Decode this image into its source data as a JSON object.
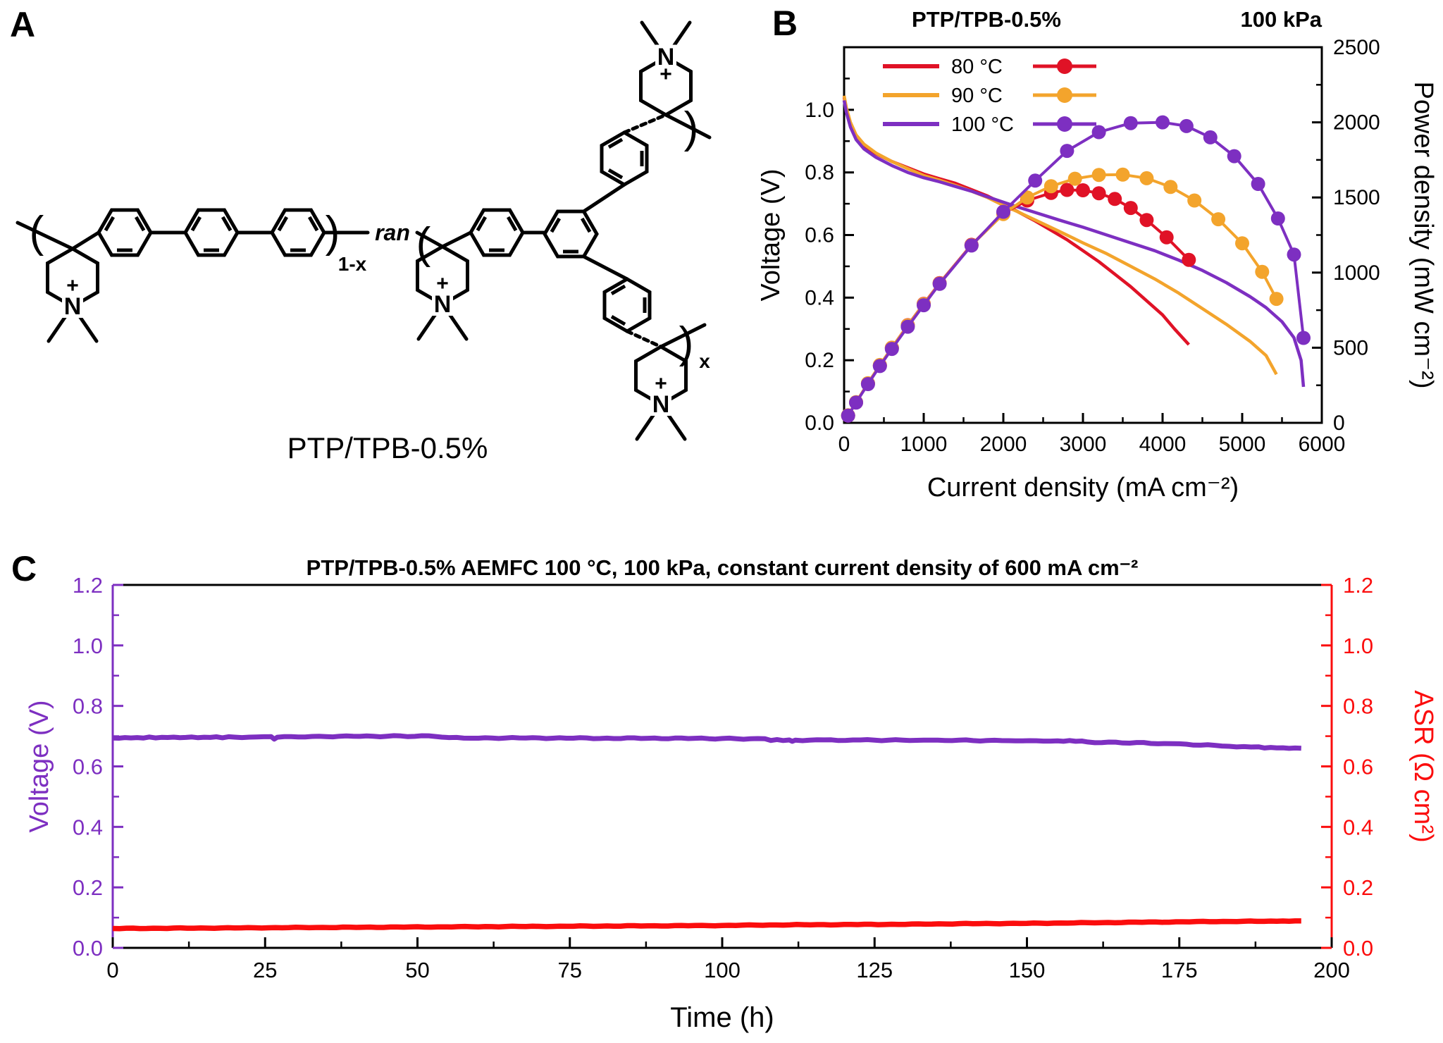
{
  "panel_a": {
    "label": "A",
    "molecule_name": "PTP/TPB-0.5%",
    "atom_n": "N",
    "charge": "+",
    "random_copolymer_label": "ran",
    "subscript_unit1": "1-x",
    "subscript_unit2": "x"
  },
  "panel_b": {
    "label": "B",
    "title": "PTP/TPB-0.5%",
    "condition": "100 kPa",
    "x_axis": {
      "title": "Current density (mA cm⁻²)",
      "min": 0,
      "max": 6000,
      "major_ticks": [
        0,
        1000,
        2000,
        3000,
        4000,
        5000,
        6000
      ],
      "minor_step": 500
    },
    "y_left_axis": {
      "title": "Voltage (V)",
      "min": 0,
      "max": 1.2,
      "major_ticks": [
        0.0,
        0.2,
        0.4,
        0.6,
        0.8,
        1.0
      ],
      "minor_step": 0.1
    },
    "y_right_axis": {
      "title": "Power density (mW cm⁻²)",
      "min": 0,
      "max": 2500,
      "major_ticks": [
        0,
        500,
        1000,
        1500,
        2000,
        2500
      ],
      "minor_step": 250
    },
    "legend": [
      {
        "label": "80 °C",
        "color": "#e01226"
      },
      {
        "label": "90 °C",
        "color": "#f3a42c"
      },
      {
        "label": "100 °C",
        "color": "#7d2fc1"
      }
    ],
    "chart_data": {
      "type": "line",
      "grid": false,
      "legend_position": "top-left-inside",
      "series": [
        {
          "name": "80 °C polarization",
          "axis": "left",
          "style": "solid",
          "color": "#e01226",
          "points": [
            [
              0,
              1.04
            ],
            [
              30,
              1.0
            ],
            [
              80,
              0.955
            ],
            [
              150,
              0.915
            ],
            [
              250,
              0.885
            ],
            [
              400,
              0.86
            ],
            [
              600,
              0.835
            ],
            [
              800,
              0.815
            ],
            [
              1000,
              0.795
            ],
            [
              1200,
              0.78
            ],
            [
              1400,
              0.765
            ],
            [
              1600,
              0.745
            ],
            [
              1800,
              0.725
            ],
            [
              2000,
              0.7
            ],
            [
              2200,
              0.672
            ],
            [
              2400,
              0.645
            ],
            [
              2600,
              0.615
            ],
            [
              2800,
              0.585
            ],
            [
              3000,
              0.55
            ],
            [
              3200,
              0.515
            ],
            [
              3400,
              0.475
            ],
            [
              3600,
              0.435
            ],
            [
              3800,
              0.39
            ],
            [
              4000,
              0.345
            ],
            [
              4150,
              0.3
            ],
            [
              4330,
              0.25
            ]
          ]
        },
        {
          "name": "90 °C polarization",
          "axis": "left",
          "style": "solid",
          "color": "#f3a42c",
          "points": [
            [
              0,
              1.045
            ],
            [
              30,
              1.005
            ],
            [
              80,
              0.96
            ],
            [
              150,
              0.92
            ],
            [
              250,
              0.89
            ],
            [
              400,
              0.862
            ],
            [
              600,
              0.835
            ],
            [
              800,
              0.812
            ],
            [
              1000,
              0.79
            ],
            [
              1200,
              0.775
            ],
            [
              1400,
              0.758
            ],
            [
              1600,
              0.74
            ],
            [
              1800,
              0.72
            ],
            [
              2000,
              0.695
            ],
            [
              2200,
              0.672
            ],
            [
              2400,
              0.648
            ],
            [
              2700,
              0.612
            ],
            [
              3000,
              0.575
            ],
            [
              3300,
              0.54
            ],
            [
              3600,
              0.5
            ],
            [
              3900,
              0.46
            ],
            [
              4200,
              0.415
            ],
            [
              4500,
              0.365
            ],
            [
              4800,
              0.315
            ],
            [
              5100,
              0.26
            ],
            [
              5300,
              0.215
            ],
            [
              5430,
              0.155
            ]
          ]
        },
        {
          "name": "100 °C polarization",
          "axis": "left",
          "style": "solid",
          "color": "#7d2fc1",
          "points": [
            [
              0,
              1.03
            ],
            [
              30,
              0.99
            ],
            [
              80,
              0.945
            ],
            [
              150,
              0.905
            ],
            [
              250,
              0.875
            ],
            [
              400,
              0.848
            ],
            [
              600,
              0.822
            ],
            [
              800,
              0.8
            ],
            [
              1000,
              0.783
            ],
            [
              1200,
              0.77
            ],
            [
              1400,
              0.755
            ],
            [
              1600,
              0.74
            ],
            [
              1800,
              0.722
            ],
            [
              2000,
              0.705
            ],
            [
              2200,
              0.688
            ],
            [
              2400,
              0.672
            ],
            [
              2700,
              0.648
            ],
            [
              3000,
              0.625
            ],
            [
              3300,
              0.6
            ],
            [
              3600,
              0.575
            ],
            [
              3900,
              0.55
            ],
            [
              4200,
              0.52
            ],
            [
              4500,
              0.487
            ],
            [
              4800,
              0.448
            ],
            [
              5100,
              0.403
            ],
            [
              5300,
              0.368
            ],
            [
              5500,
              0.323
            ],
            [
              5650,
              0.272
            ],
            [
              5740,
              0.2
            ],
            [
              5770,
              0.115
            ]
          ]
        },
        {
          "name": "80 °C power density",
          "axis": "right",
          "style": "markers",
          "color": "#e01226",
          "points": [
            [
              50,
              48
            ],
            [
              150,
              136
            ],
            [
              300,
              262
            ],
            [
              450,
              382
            ],
            [
              600,
              500
            ],
            [
              800,
              650
            ],
            [
              1000,
              792
            ],
            [
              1200,
              930
            ],
            [
              1600,
              1185
            ],
            [
              2000,
              1395
            ],
            [
              2300,
              1480
            ],
            [
              2600,
              1530
            ],
            [
              2800,
              1550
            ],
            [
              3000,
              1548
            ],
            [
              3200,
              1528
            ],
            [
              3400,
              1490
            ],
            [
              3600,
              1430
            ],
            [
              3800,
              1350
            ],
            [
              4050,
              1235
            ],
            [
              4330,
              1085
            ]
          ]
        },
        {
          "name": "90 °C power density",
          "axis": "right",
          "style": "markers",
          "color": "#f3a42c",
          "points": [
            [
              50,
              50
            ],
            [
              150,
              138
            ],
            [
              300,
              264
            ],
            [
              450,
              385
            ],
            [
              600,
              500
            ],
            [
              800,
              648
            ],
            [
              1000,
              790
            ],
            [
              1200,
              928
            ],
            [
              1600,
              1182
            ],
            [
              2000,
              1390
            ],
            [
              2300,
              1500
            ],
            [
              2600,
              1575
            ],
            [
              2900,
              1625
            ],
            [
              3200,
              1650
            ],
            [
              3500,
              1652
            ],
            [
              3800,
              1628
            ],
            [
              4100,
              1570
            ],
            [
              4400,
              1480
            ],
            [
              4700,
              1355
            ],
            [
              5000,
              1195
            ],
            [
              5250,
              1005
            ],
            [
              5430,
              825
            ]
          ]
        },
        {
          "name": "100 °C power density",
          "axis": "right",
          "style": "markers",
          "color": "#7d2fc1",
          "points": [
            [
              50,
              48
            ],
            [
              150,
              135
            ],
            [
              300,
              258
            ],
            [
              450,
              378
            ],
            [
              600,
              492
            ],
            [
              800,
              640
            ],
            [
              1000,
              783
            ],
            [
              1200,
              925
            ],
            [
              1600,
              1180
            ],
            [
              2000,
              1405
            ],
            [
              2400,
              1612
            ],
            [
              2800,
              1810
            ],
            [
              3200,
              1935
            ],
            [
              3600,
              1995
            ],
            [
              4000,
              2000
            ],
            [
              4300,
              1975
            ],
            [
              4600,
              1900
            ],
            [
              4900,
              1775
            ],
            [
              5200,
              1590
            ],
            [
              5450,
              1360
            ],
            [
              5650,
              1120
            ],
            [
              5770,
              565
            ]
          ]
        }
      ],
      "peak_power_mW_cm2": {
        "80C": 1550,
        "90C": 1652,
        "100C": 2000
      }
    }
  },
  "panel_c": {
    "label": "C",
    "title": "PTP/TPB-0.5% AEMFC 100 °C, 100 kPa, constant current density of 600 mA cm⁻²",
    "x_axis": {
      "title": "Time (h)",
      "min": 0,
      "max": 200,
      "major_ticks": [
        0,
        25,
        50,
        75,
        100,
        125,
        150,
        175,
        200
      ],
      "minor_step": 12.5
    },
    "y_left_axis": {
      "title": "Voltage (V)",
      "color": "#7d2fc1",
      "min": 0,
      "max": 1.2,
      "major_ticks": [
        0.0,
        0.2,
        0.4,
        0.6,
        0.8,
        1.0,
        1.2
      ],
      "minor_step": 0.1
    },
    "y_right_axis": {
      "title": "ASR (Ω cm²)",
      "color": "#fb0d0d",
      "min": 0,
      "max": 1.2,
      "major_ticks": [
        0.0,
        0.2,
        0.4,
        0.6,
        0.8,
        1.0,
        1.2
      ],
      "minor_step": 0.1
    },
    "chart_data": {
      "type": "line",
      "grid": false,
      "series": [
        {
          "name": "cell voltage",
          "axis": "left",
          "color": "#7d2fc1",
          "points": [
            [
              0,
              0.694
            ],
            [
              5,
              0.695
            ],
            [
              10,
              0.696
            ],
            [
              15,
              0.696
            ],
            [
              20,
              0.697
            ],
            [
              26,
              0.697
            ],
            [
              26.5,
              0.69
            ],
            [
              27,
              0.697
            ],
            [
              35,
              0.699
            ],
            [
              45,
              0.7
            ],
            [
              53,
              0.7
            ],
            [
              54,
              0.695
            ],
            [
              60,
              0.694
            ],
            [
              70,
              0.694
            ],
            [
              80,
              0.693
            ],
            [
              90,
              0.693
            ],
            [
              100,
              0.692
            ],
            [
              107,
              0.691
            ],
            [
              108,
              0.687
            ],
            [
              111,
              0.687
            ],
            [
              111.5,
              0.682
            ],
            [
              112,
              0.687
            ],
            [
              125,
              0.687
            ],
            [
              140,
              0.686
            ],
            [
              147,
              0.685
            ],
            [
              155,
              0.684
            ],
            [
              159,
              0.684
            ],
            [
              160,
              0.68
            ],
            [
              168,
              0.678
            ],
            [
              175,
              0.674
            ],
            [
              182,
              0.668
            ],
            [
              188,
              0.663
            ],
            [
              192,
              0.661
            ],
            [
              195,
              0.66
            ]
          ]
        },
        {
          "name": "ASR",
          "axis": "right",
          "color": "#fb0d0d",
          "points": [
            [
              0,
              0.064
            ],
            [
              10,
              0.065
            ],
            [
              20,
              0.066
            ],
            [
              30,
              0.067
            ],
            [
              40,
              0.068
            ],
            [
              50,
              0.069
            ],
            [
              60,
              0.07
            ],
            [
              70,
              0.071
            ],
            [
              80,
              0.072
            ],
            [
              90,
              0.073
            ],
            [
              100,
              0.074
            ],
            [
              110,
              0.076
            ],
            [
              120,
              0.077
            ],
            [
              130,
              0.078
            ],
            [
              140,
              0.08
            ],
            [
              150,
              0.081
            ],
            [
              160,
              0.083
            ],
            [
              170,
              0.085
            ],
            [
              180,
              0.087
            ],
            [
              190,
              0.088
            ],
            [
              195,
              0.089
            ]
          ]
        }
      ]
    }
  }
}
